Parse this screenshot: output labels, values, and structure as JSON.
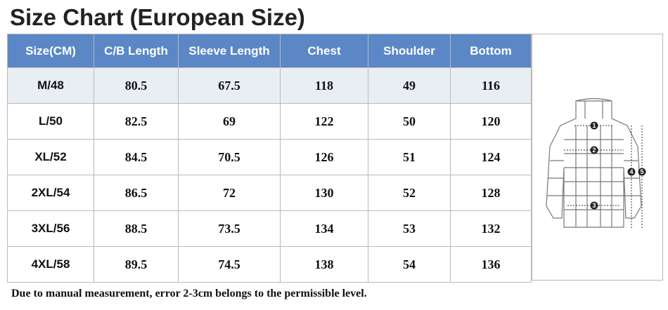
{
  "title": "Size Chart (European Size)",
  "table": {
    "header": [
      "Size(CM)",
      "C/B Length",
      "Sleeve Length",
      "Chest",
      "Shoulder",
      "Bottom"
    ],
    "rows": [
      [
        "M/48",
        80.5,
        67.5,
        118,
        49,
        116
      ],
      [
        "L/50",
        82.5,
        69,
        122,
        50,
        120
      ],
      [
        "XL/52",
        84.5,
        70.5,
        126,
        51,
        124
      ],
      [
        "2XL/54",
        86.5,
        72,
        130,
        52,
        128
      ],
      [
        "3XL/56",
        88.5,
        73.5,
        134,
        53,
        132
      ],
      [
        "4XL/58",
        89.5,
        74.5,
        138,
        54,
        136
      ]
    ]
  },
  "diagram": {
    "markers": [
      "1",
      "2",
      "3",
      "4",
      "5"
    ]
  },
  "footnote": "Due to manual measurement, error 2-3cm belongs to the permissible level."
}
